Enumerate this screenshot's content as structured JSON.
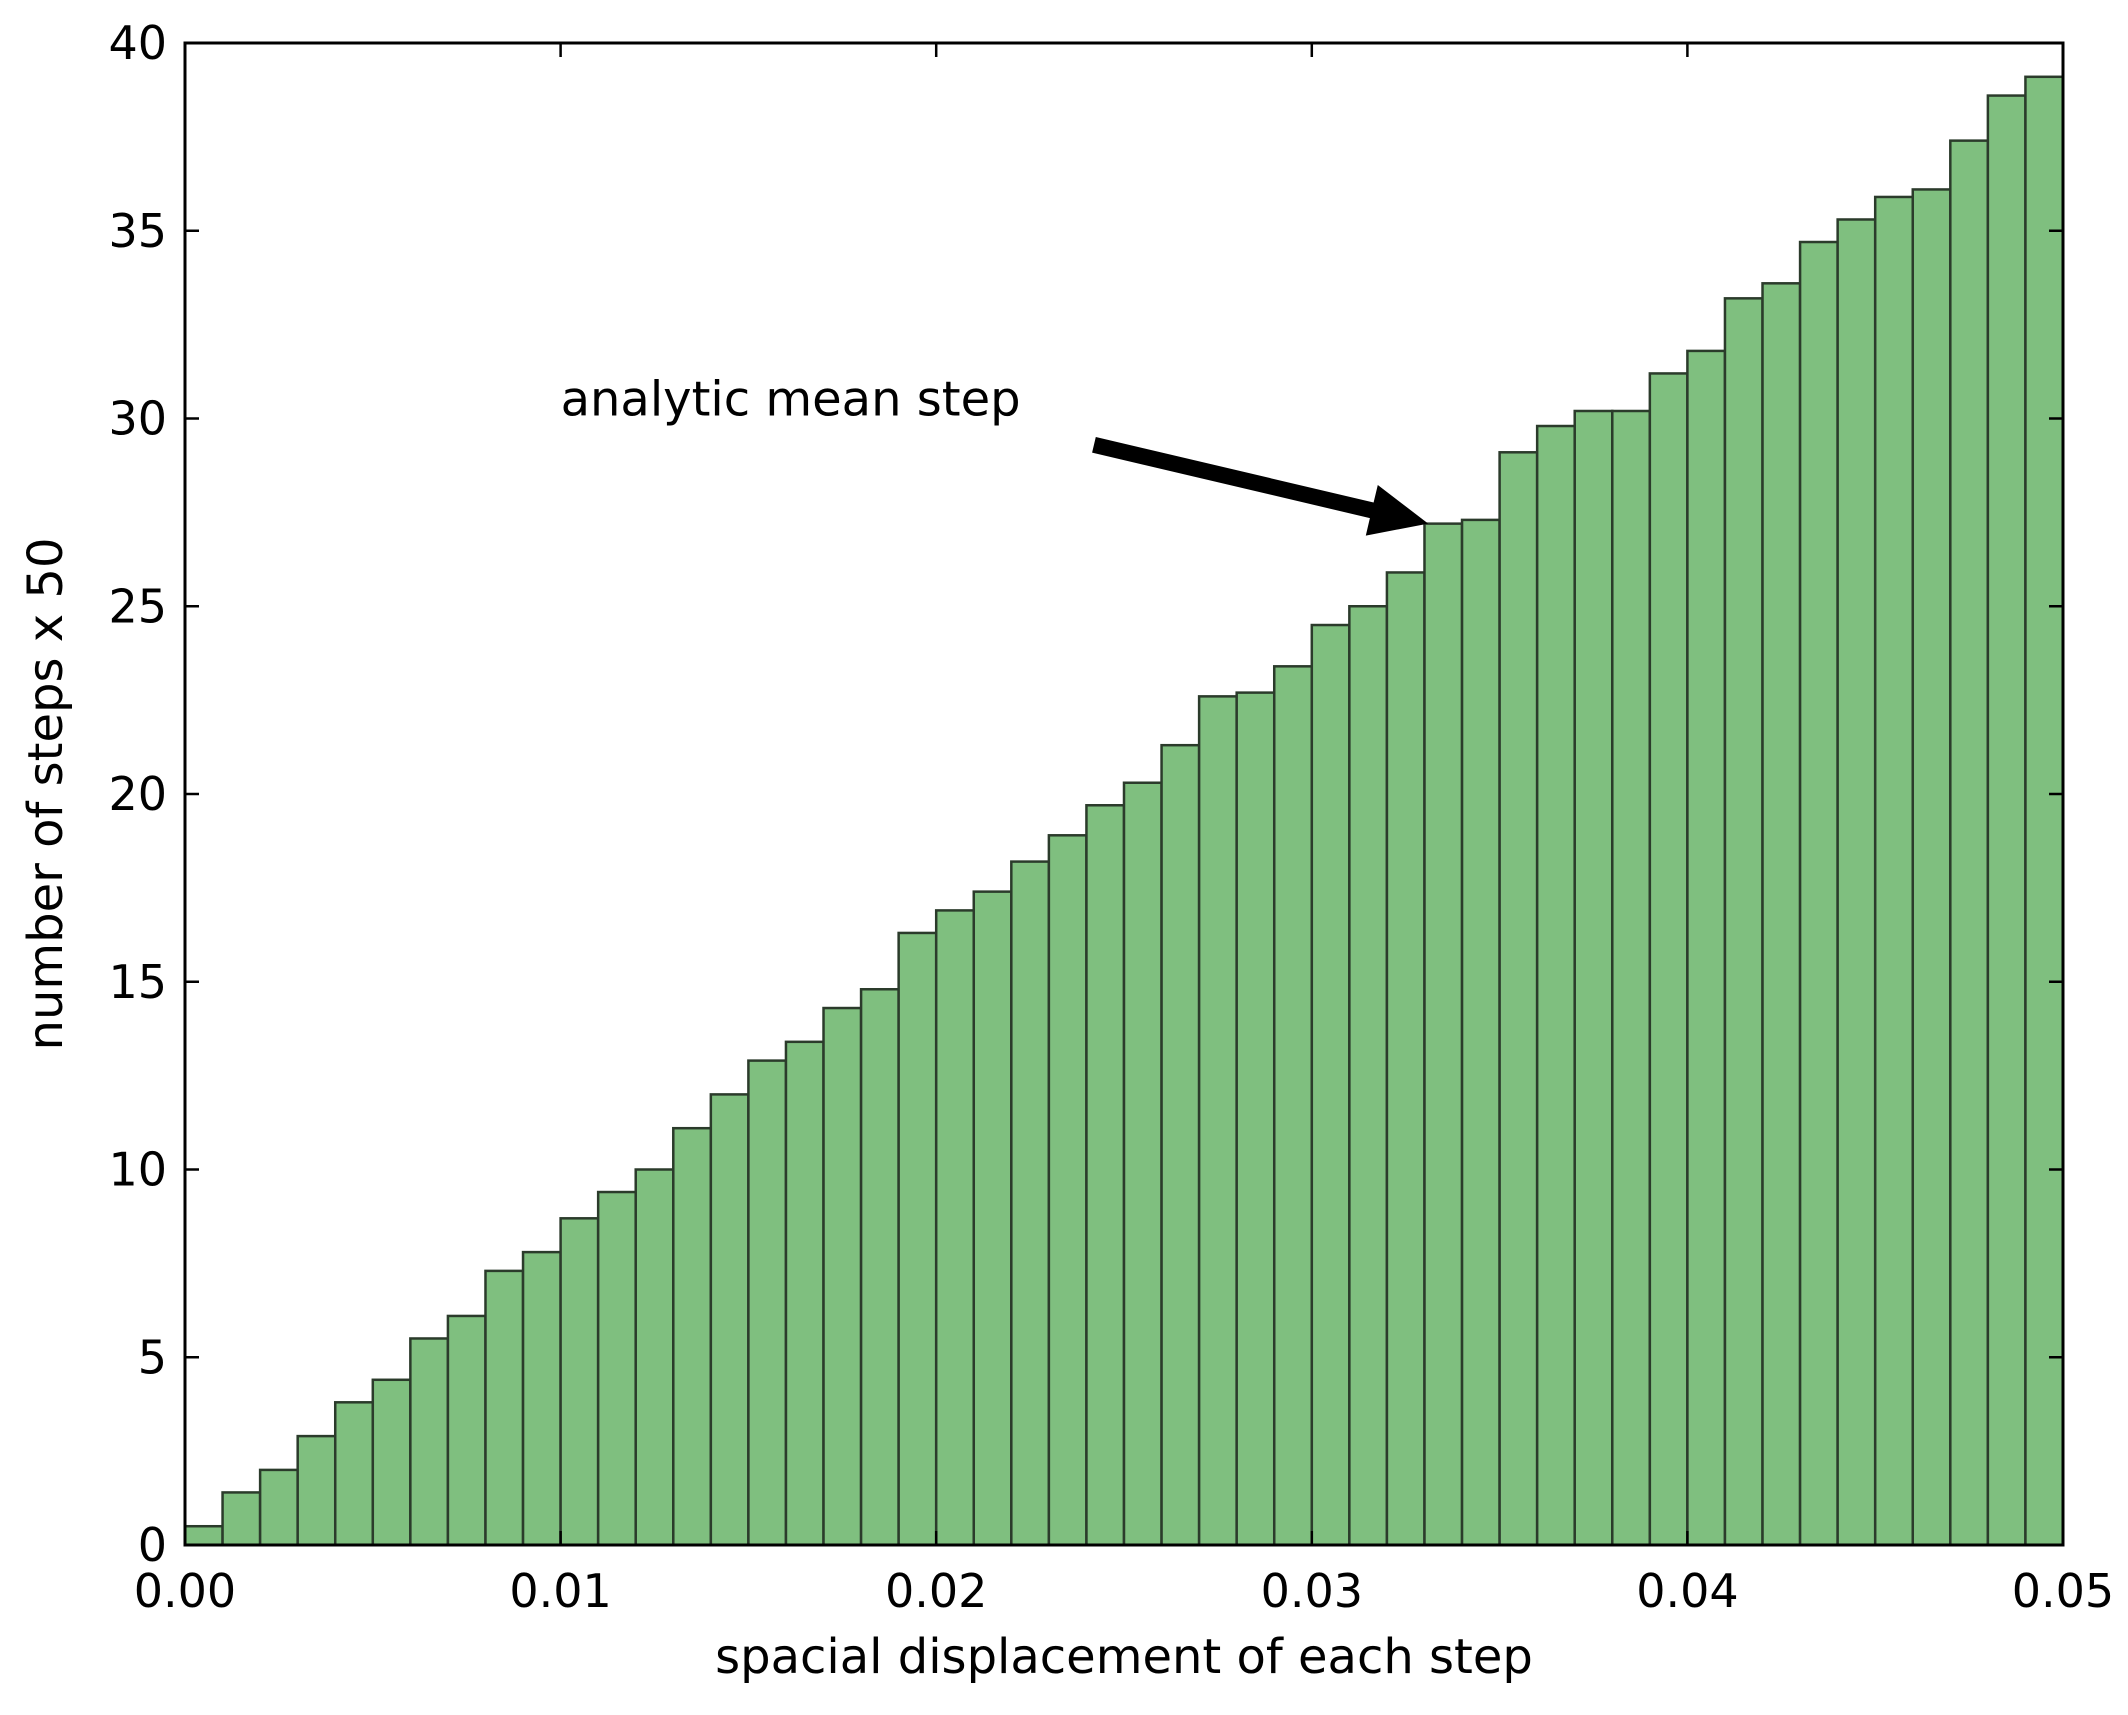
{
  "chart_data": {
    "type": "bar",
    "title": "",
    "xlabel": "spacial displacement of each step",
    "ylabel": "number of steps x 50",
    "xlim": [
      0.0,
      0.05
    ],
    "ylim": [
      0,
      40
    ],
    "bin_width": 0.001,
    "bin_start": 0.0,
    "xticks": [
      "0.00",
      "0.01",
      "0.02",
      "0.03",
      "0.04",
      "0.05"
    ],
    "xtick_values": [
      0.0,
      0.01,
      0.02,
      0.03,
      0.04,
      0.05
    ],
    "yticks": [
      "0",
      "5",
      "10",
      "15",
      "20",
      "25",
      "30",
      "35",
      "40"
    ],
    "ytick_values": [
      0,
      5,
      10,
      15,
      20,
      25,
      30,
      35,
      40
    ],
    "values": [
      0.5,
      1.4,
      2.0,
      2.9,
      3.8,
      4.4,
      5.5,
      6.1,
      7.3,
      7.8,
      8.7,
      9.4,
      10.0,
      11.1,
      12.0,
      12.9,
      13.4,
      14.3,
      14.8,
      16.3,
      16.9,
      17.4,
      18.2,
      18.9,
      19.7,
      20.3,
      21.3,
      22.6,
      22.7,
      23.4,
      24.5,
      25.0,
      25.9,
      27.2,
      27.3,
      29.1,
      29.8,
      30.2,
      30.2,
      31.2,
      31.8,
      33.2,
      33.6,
      34.7,
      35.3,
      35.9,
      36.1,
      37.4,
      38.6,
      39.1
    ],
    "bar_color": "#7fbf7f",
    "bar_edge_color": "#2b3b2b",
    "grid": false,
    "annotations": [
      {
        "text": "analytic mean step",
        "text_x": 0.01,
        "text_y": 30.5,
        "arrow_tail_x": 0.0242,
        "arrow_tail_y": 29.3,
        "arrow_head_x": 0.0331,
        "arrow_head_y": 27.2
      }
    ]
  }
}
